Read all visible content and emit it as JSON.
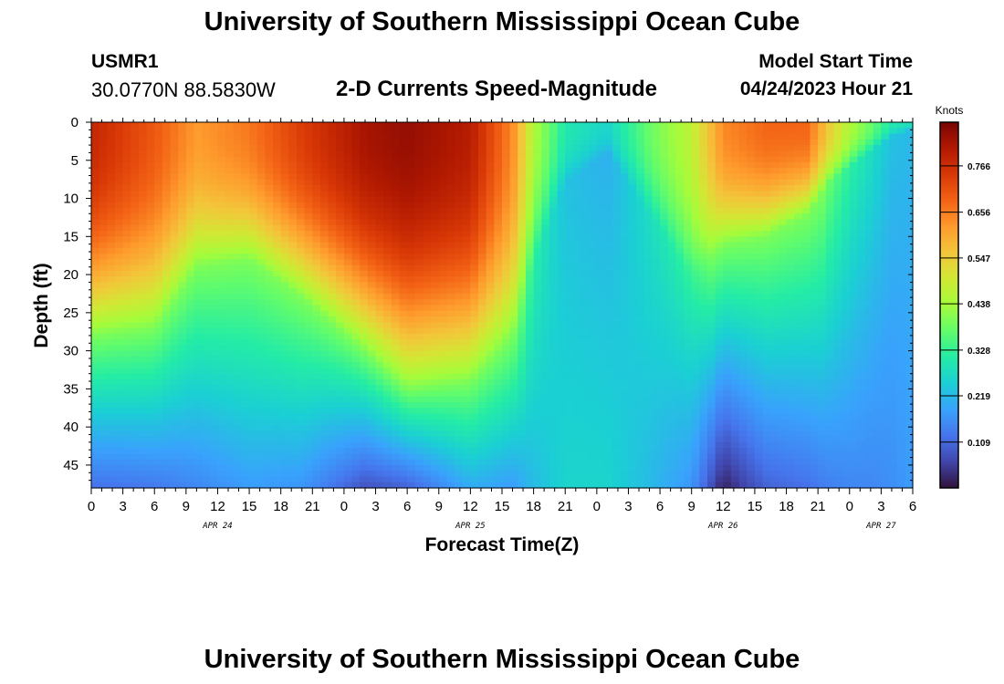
{
  "header": {
    "title": "University of Southern Mississippi Ocean Cube",
    "station_id": "USMR1",
    "coordinates": "30.0770N  88.5830W",
    "subtitle": "2-D Currents Speed-Magnitude",
    "model_start_label": "Model Start Time",
    "model_start_value": "04/24/2023 Hour 21"
  },
  "footer": {
    "title": "University of Southern Mississippi Ocean Cube"
  },
  "chart_data": {
    "type": "heatmap",
    "title": "2-D Currents Speed-Magnitude",
    "xlabel": "Forecast Time(Z)",
    "ylabel": "Depth (ft)",
    "xlim": [
      0,
      78
    ],
    "ylim": [
      48,
      0
    ],
    "x_tick_labels": [
      "0",
      "3",
      "6",
      "9",
      "12",
      "15",
      "18",
      "21",
      "0",
      "3",
      "6",
      "9",
      "12",
      "15",
      "18",
      "21",
      "0",
      "3",
      "6",
      "9",
      "12",
      "15",
      "18",
      "21",
      "0",
      "3",
      "6"
    ],
    "y_ticks": [
      0,
      5,
      10,
      15,
      20,
      25,
      30,
      35,
      40,
      45
    ],
    "date_labels": [
      {
        "label": "APR 24",
        "hour": 12
      },
      {
        "label": "APR 25",
        "hour": 36
      },
      {
        "label": "APR 26",
        "hour": 60
      },
      {
        "label": "APR 27",
        "hour": 75
      }
    ],
    "colorbar": {
      "label": "Knots",
      "min": 0.0,
      "max": 0.87,
      "ticks": [
        0.109,
        0.219,
        0.328,
        0.438,
        0.547,
        0.656,
        0.766
      ],
      "colors": [
        "#30123b",
        "#4145ab",
        "#4675ed",
        "#39a2fc",
        "#1bcfd4",
        "#24eca6",
        "#61fc6c",
        "#a4fc3b",
        "#d1e834",
        "#f3c63a",
        "#fe9b2d",
        "#f36315",
        "#d93806",
        "#b11901",
        "#7a0403"
      ]
    },
    "depth_profile": {
      "x_hours": [
        0,
        6,
        10,
        15,
        20,
        26,
        30,
        36,
        40,
        42,
        45,
        49,
        53,
        57,
        60,
        64,
        68,
        70,
        72,
        74,
        76,
        78
      ],
      "surface_speed": [
        0.78,
        0.7,
        0.62,
        0.66,
        0.74,
        0.82,
        0.84,
        0.8,
        0.64,
        0.45,
        0.3,
        0.26,
        0.38,
        0.47,
        0.64,
        0.68,
        0.68,
        0.55,
        0.45,
        0.38,
        0.3,
        0.28
      ],
      "thermocline_depth_ft": [
        28,
        27,
        19,
        18,
        23,
        30,
        35,
        34,
        28,
        18,
        8,
        4,
        12,
        20,
        16,
        15,
        12,
        8,
        6,
        4,
        2,
        1
      ],
      "bottom_speed": [
        0.12,
        0.13,
        0.15,
        0.18,
        0.17,
        0.08,
        0.1,
        0.2,
        0.18,
        0.22,
        0.26,
        0.26,
        0.22,
        0.17,
        0.02,
        0.1,
        0.12,
        0.14,
        0.15,
        0.15,
        0.16,
        0.18
      ]
    }
  }
}
